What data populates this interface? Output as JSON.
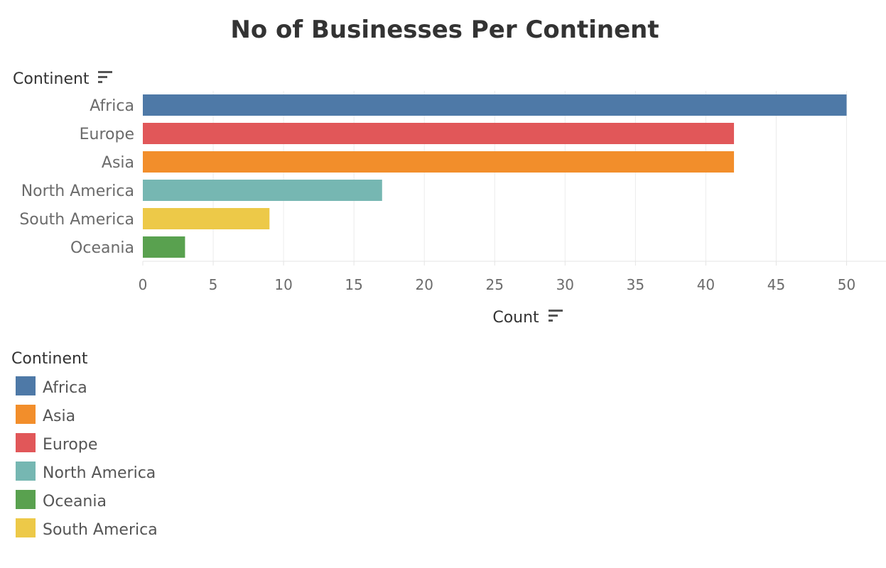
{
  "chart_data": {
    "type": "bar",
    "orientation": "horizontal",
    "title": "No of Businesses Per Continent",
    "row_header": "Continent",
    "xlabel": "Count",
    "categories": [
      "Africa",
      "Europe",
      "Asia",
      "North America",
      "South America",
      "Oceania"
    ],
    "values": [
      50,
      42,
      42,
      17,
      9,
      3
    ],
    "xlim": [
      0,
      52.8
    ],
    "xticks": [
      0,
      5,
      10,
      15,
      20,
      25,
      30,
      35,
      40,
      45,
      50
    ],
    "grid": true,
    "colors": {
      "Africa": "#4e79a7",
      "Asia": "#f28e2b",
      "Europe": "#e15759",
      "North America": "#76b7b2",
      "Oceania": "#59a14f",
      "South America": "#edc948"
    },
    "legend": {
      "title": "Continent",
      "placement": "bottom-left",
      "items": [
        "Africa",
        "Asia",
        "Europe",
        "North America",
        "Oceania",
        "South America"
      ]
    },
    "icons": {
      "row_header_sort": "sort-descending-icon",
      "axis_sort": "sort-descending-icon"
    }
  }
}
